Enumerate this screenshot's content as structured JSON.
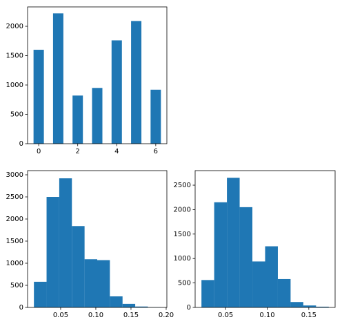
{
  "chart_data": [
    {
      "type": "bar",
      "color": "#1f77b4",
      "x": [
        0,
        1,
        2,
        3,
        4,
        5,
        6
      ],
      "values": [
        1600,
        2220,
        820,
        950,
        1760,
        2090,
        920
      ],
      "xlim": [
        -0.57,
        6.57
      ],
      "xticks": [
        0,
        2,
        4,
        6
      ],
      "ylim": [
        0,
        2330
      ],
      "yticks": [
        0,
        500,
        1000,
        1500,
        2000
      ]
    },
    {
      "type": "histogram",
      "color": "#1f77b4",
      "bins": [
        0.012,
        0.03,
        0.048,
        0.066,
        0.084,
        0.102,
        0.12,
        0.138,
        0.156,
        0.174,
        0.192
      ],
      "values": [
        580,
        2500,
        2920,
        1840,
        1090,
        1070,
        250,
        80,
        20,
        5
      ],
      "xlim": [
        0.003,
        0.201
      ],
      "xticks": [
        {
          "value": 0.05,
          "label": "0.05"
        },
        {
          "value": 0.1,
          "label": "0.10"
        },
        {
          "value": 0.15,
          "label": "0.15"
        },
        {
          "value": 0.2,
          "label": "0.20"
        }
      ],
      "ylim": [
        0,
        3094
      ],
      "yticks": [
        0,
        500,
        1000,
        1500,
        2000,
        2500,
        3000
      ]
    },
    {
      "type": "histogram",
      "color": "#1f77b4",
      "bins": [
        0.021,
        0.0363,
        0.0516,
        0.0669,
        0.0822,
        0.0975,
        0.1128,
        0.1281,
        0.1434,
        0.1587,
        0.174
      ],
      "values": [
        560,
        2150,
        2650,
        2050,
        940,
        1250,
        580,
        110,
        40,
        15
      ],
      "xlim": [
        0.0134,
        0.1816
      ],
      "xticks": [
        {
          "value": 0.05,
          "label": "0.05"
        },
        {
          "value": 0.1,
          "label": "0.10"
        },
        {
          "value": 0.15,
          "label": "0.15"
        }
      ],
      "ylim": [
        0,
        2797
      ],
      "yticks": [
        0,
        500,
        1000,
        1500,
        2000,
        2500
      ]
    }
  ]
}
